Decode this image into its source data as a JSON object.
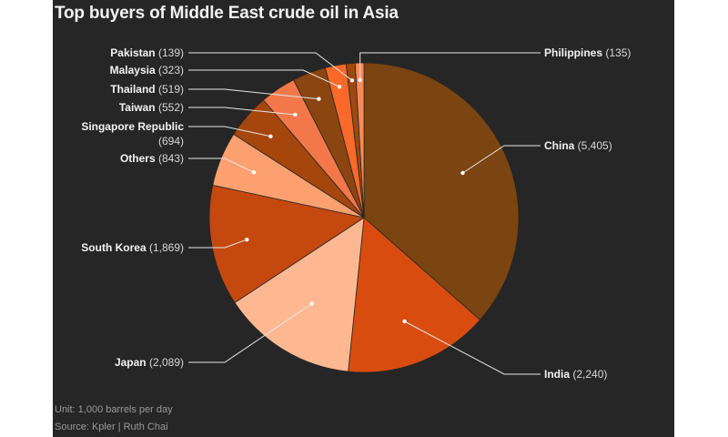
{
  "title": "Top buyers of Middle East crude oil in Asia",
  "unit_note": "Unit: 1,000 barrels per day",
  "source_note": "Source: Kpler | Ruth Chai",
  "chart_data": {
    "type": "pie",
    "title": "Top buyers of Middle East crude oil in Asia",
    "unit": "1,000 barrels per day",
    "slices": [
      {
        "name": "China",
        "value": 5405,
        "value_label": "5,405",
        "color": "#7a4510"
      },
      {
        "name": "India",
        "value": 2240,
        "value_label": "2,240",
        "color": "#d84c10"
      },
      {
        "name": "Japan",
        "value": 2089,
        "value_label": "2,089",
        "color": "#fdb892"
      },
      {
        "name": "South Korea",
        "value": 1869,
        "value_label": "1,869",
        "color": "#c5480f"
      },
      {
        "name": "Others",
        "value": 843,
        "value_label": "843",
        "color": "#fca070"
      },
      {
        "name": "Singapore Republic",
        "value": 694,
        "value_label": "694",
        "color": "#a5460c"
      },
      {
        "name": "Taiwan",
        "value": 552,
        "value_label": "552",
        "color": "#f37849"
      },
      {
        "name": "Thailand",
        "value": 519,
        "value_label": "519",
        "color": "#8b4510"
      },
      {
        "name": "Malaysia",
        "value": 323,
        "value_label": "323",
        "color": "#f9692a"
      },
      {
        "name": "Pakistan",
        "value": 139,
        "value_label": "139",
        "color": "#9c4910"
      },
      {
        "name": "Philippines",
        "value": 135,
        "value_label": "135",
        "color": "#fd8a55"
      }
    ]
  }
}
